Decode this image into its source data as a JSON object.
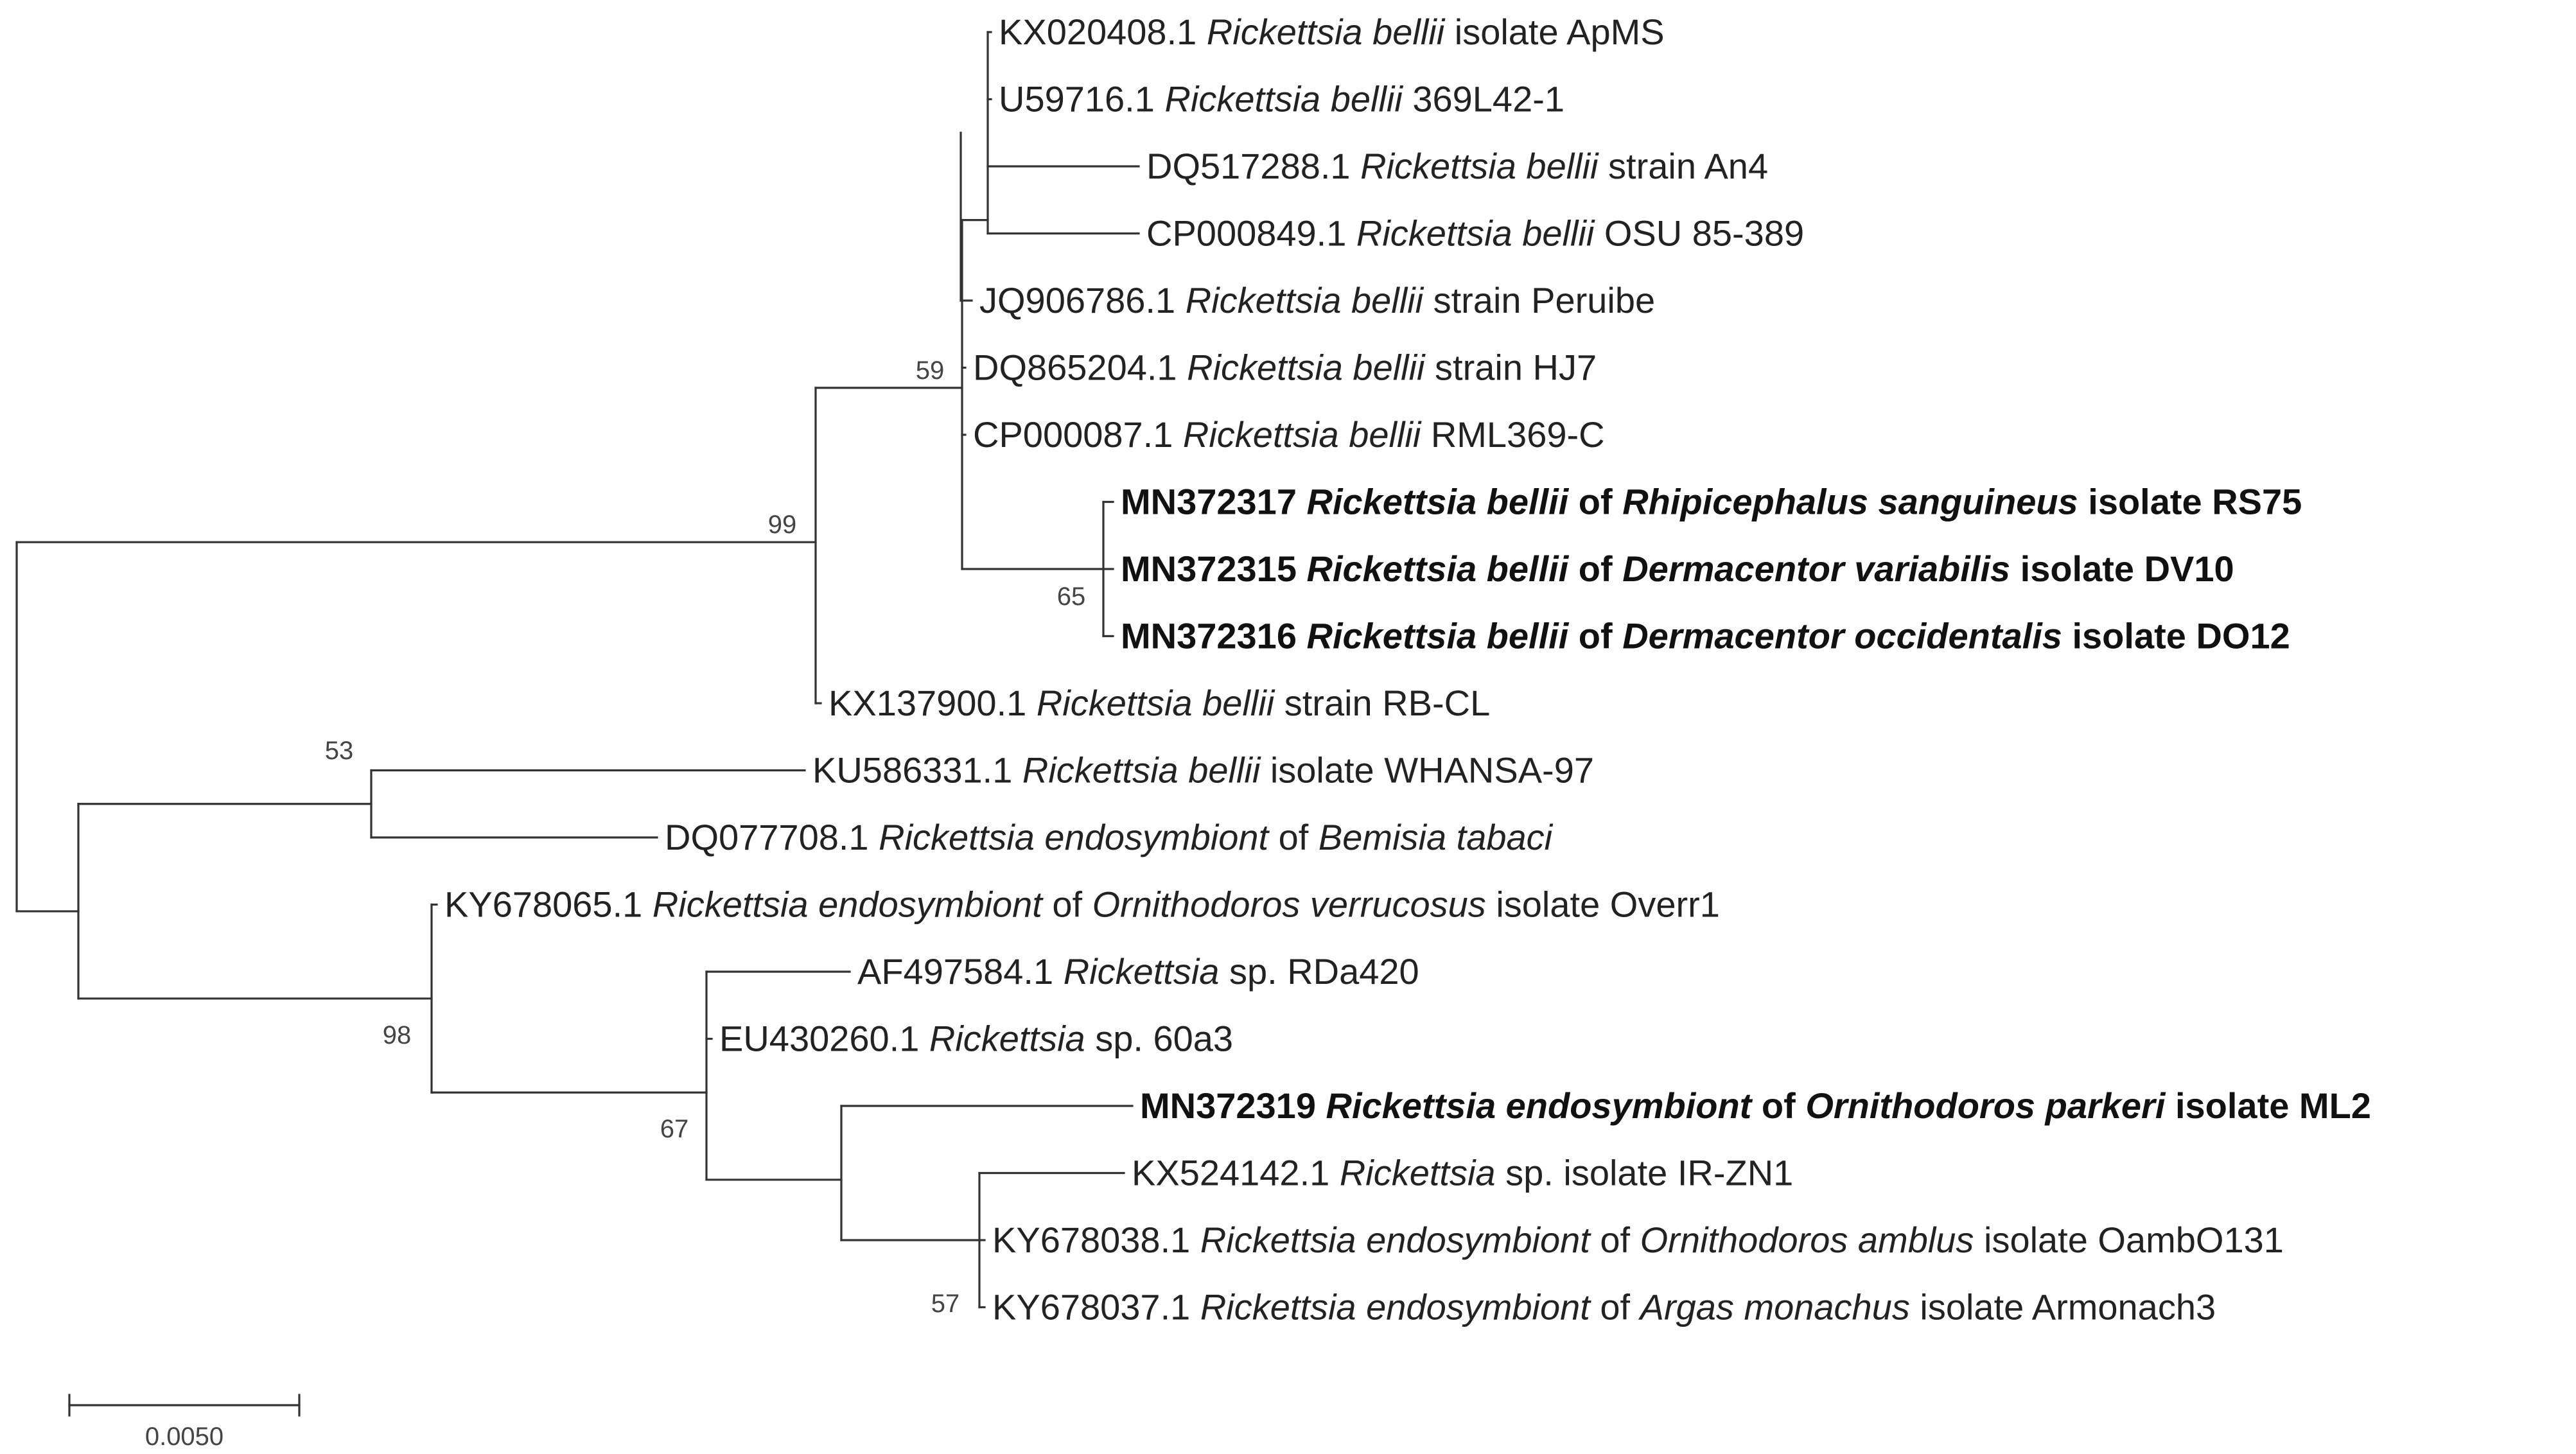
{
  "taxa": [
    {
      "accession": "KX020408.1",
      "parts": [
        {
          "t": "Rickettsia bellii",
          "i": true
        },
        {
          "t": " isolate ApMS",
          "i": false
        }
      ],
      "bold": false
    },
    {
      "accession": "U59716.1",
      "parts": [
        {
          "t": "Rickettsia bellii",
          "i": true
        },
        {
          "t": " 369L42-1",
          "i": false
        }
      ],
      "bold": false
    },
    {
      "accession": "DQ517288.1",
      "parts": [
        {
          "t": "Rickettsia bellii",
          "i": true
        },
        {
          "t": " strain An4",
          "i": false
        }
      ],
      "bold": false
    },
    {
      "accession": "CP000849.1",
      "parts": [
        {
          "t": "Rickettsia bellii",
          "i": true
        },
        {
          "t": " OSU 85-389",
          "i": false
        }
      ],
      "bold": false
    },
    {
      "accession": "JQ906786.1",
      "parts": [
        {
          "t": "Rickettsia bellii",
          "i": true
        },
        {
          "t": " strain Peruibe",
          "i": false
        }
      ],
      "bold": false
    },
    {
      "accession": "DQ865204.1",
      "parts": [
        {
          "t": "Rickettsia bellii",
          "i": true
        },
        {
          "t": " strain HJ7",
          "i": false
        }
      ],
      "bold": false
    },
    {
      "accession": "CP000087.1",
      "parts": [
        {
          "t": "Rickettsia bellii",
          "i": true
        },
        {
          "t": " RML369-C",
          "i": false
        }
      ],
      "bold": false
    },
    {
      "accession": "MN372317",
      "parts": [
        {
          "t": "Rickettsia bellii",
          "i": true
        },
        {
          "t": " of ",
          "i": false
        },
        {
          "t": "Rhipicephalus sanguineus",
          "i": true
        },
        {
          "t": " isolate RS75",
          "i": false
        }
      ],
      "bold": true
    },
    {
      "accession": "MN372315",
      "parts": [
        {
          "t": "Rickettsia bellii",
          "i": true
        },
        {
          "t": " of ",
          "i": false
        },
        {
          "t": "Dermacentor variabilis",
          "i": true
        },
        {
          "t": " isolate DV10",
          "i": false
        }
      ],
      "bold": true
    },
    {
      "accession": "MN372316",
      "parts": [
        {
          "t": "Rickettsia bellii",
          "i": true
        },
        {
          "t": " of ",
          "i": false
        },
        {
          "t": "Dermacentor occidentalis",
          "i": true
        },
        {
          "t": " isolate DO12",
          "i": false
        }
      ],
      "bold": true
    },
    {
      "accession": "KX137900.1",
      "parts": [
        {
          "t": "Rickettsia bellii",
          "i": true
        },
        {
          "t": " strain RB-CL",
          "i": false
        }
      ],
      "bold": false
    },
    {
      "accession": "KU586331.1",
      "parts": [
        {
          "t": "Rickettsia bellii",
          "i": true
        },
        {
          "t": " isolate WHANSA-97",
          "i": false
        }
      ],
      "bold": false
    },
    {
      "accession": "DQ077708.1",
      "parts": [
        {
          "t": "Rickettsia endosymbiont",
          "i": true
        },
        {
          "t": " of ",
          "i": false
        },
        {
          "t": "Bemisia tabaci",
          "i": true
        }
      ],
      "bold": false
    },
    {
      "accession": "KY678065.1",
      "parts": [
        {
          "t": "Rickettsia endosymbiont",
          "i": true
        },
        {
          "t": " of ",
          "i": false
        },
        {
          "t": "Ornithodoros verrucosus",
          "i": true
        },
        {
          "t": " isolate Overr1",
          "i": false
        }
      ],
      "bold": false
    },
    {
      "accession": "AF497584.1",
      "parts": [
        {
          "t": "Rickettsia",
          "i": true
        },
        {
          "t": " sp. RDa420",
          "i": false
        }
      ],
      "bold": false
    },
    {
      "accession": "EU430260.1",
      "parts": [
        {
          "t": "Rickettsia",
          "i": true
        },
        {
          "t": " sp. 60a3",
          "i": false
        }
      ],
      "bold": false
    },
    {
      "accession": "MN372319",
      "parts": [
        {
          "t": "Rickettsia endosymbiont",
          "i": true
        },
        {
          "t": " of ",
          "i": false
        },
        {
          "t": "Ornithodoros parkeri",
          "i": true
        },
        {
          "t": " isolate ML2",
          "i": false
        }
      ],
      "bold": true
    },
    {
      "accession": "KX524142.1",
      "parts": [
        {
          "t": "Rickettsia",
          "i": true
        },
        {
          "t": " sp. isolate IR-ZN1",
          "i": false
        }
      ],
      "bold": false
    },
    {
      "accession": "KY678038.1",
      "parts": [
        {
          "t": "Rickettsia endosymbiont",
          "i": true
        },
        {
          "t": " of ",
          "i": false
        },
        {
          "t": "Ornithodoros amblus",
          "i": true
        },
        {
          "t": " isolate OambO131",
          "i": false
        }
      ],
      "bold": false
    },
    {
      "accession": "KY678037.1",
      "parts": [
        {
          "t": "Rickettsia endosymbiont",
          "i": true
        },
        {
          "t": " of ",
          "i": false
        },
        {
          "t": "Argas monachus",
          "i": true
        },
        {
          "t": " isolate Armonach3",
          "i": false
        }
      ],
      "bold": false
    }
  ],
  "bootstrap": [
    {
      "node": "bellii-core",
      "value": "59"
    },
    {
      "node": "bellii-all",
      "value": "99"
    },
    {
      "node": "mn-cluster",
      "value": "65"
    },
    {
      "node": "whansa-bemisia",
      "value": "53"
    },
    {
      "node": "ornithodoros-clade",
      "value": "98"
    },
    {
      "node": "rda420-clade",
      "value": "67"
    },
    {
      "node": "amblus-clade",
      "value": "57"
    }
  ],
  "scale_bar": {
    "label": "0.0050"
  }
}
